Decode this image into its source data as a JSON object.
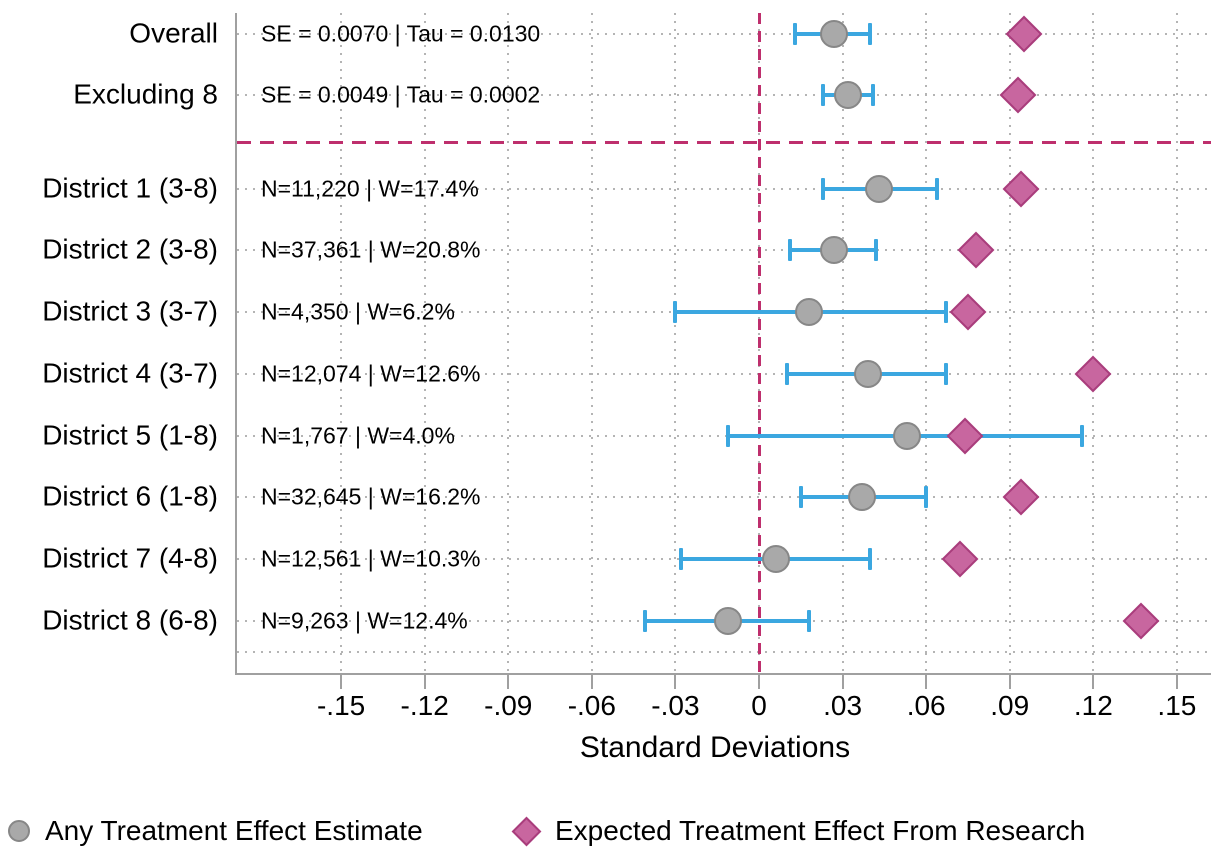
{
  "chart_data": {
    "type": "scatter",
    "subtype": "forest-plot",
    "xlabel": "Standard Deviations",
    "xlim": [
      -0.19,
      0.16
    ],
    "x_ticks": [
      -0.15,
      -0.12,
      -0.09,
      -0.06,
      -0.03,
      0,
      0.03,
      0.06,
      0.09,
      0.12,
      0.15
    ],
    "x_tick_labels": [
      "-.15",
      "-.12",
      "-.09",
      "-.06",
      "-.03",
      "0",
      ".03",
      ".06",
      ".09",
      ".12",
      ".15"
    ],
    "grid": true,
    "zero_reference_line": 0,
    "legend_position": "bottom",
    "legend": [
      {
        "label": "Any Treatment Effect Estimate",
        "marker": "circle"
      },
      {
        "label": "Expected Treatment Effect From Research",
        "marker": "diamond"
      }
    ],
    "rows": [
      {
        "label": "Overall",
        "annotation": "SE = 0.0070 | Tau = 0.0130",
        "estimate": 0.027,
        "ci_low": 0.013,
        "ci_high": 0.04,
        "expected": 0.095,
        "group": "summary"
      },
      {
        "label": "Excluding 8",
        "annotation": "SE = 0.0049 | Tau = 0.0002",
        "estimate": 0.032,
        "ci_low": 0.023,
        "ci_high": 0.041,
        "expected": 0.093,
        "group": "summary"
      },
      {
        "label": "District 1 (3-8)",
        "annotation": "N=11,220 | W=17.4%",
        "estimate": 0.043,
        "ci_low": 0.023,
        "ci_high": 0.064,
        "expected": 0.094,
        "group": "district"
      },
      {
        "label": "District 2 (3-8)",
        "annotation": "N=37,361 | W=20.8%",
        "estimate": 0.027,
        "ci_low": 0.011,
        "ci_high": 0.042,
        "expected": 0.078,
        "group": "district"
      },
      {
        "label": "District 3 (3-7)",
        "annotation": "N=4,350 | W=6.2%",
        "estimate": 0.018,
        "ci_low": -0.03,
        "ci_high": 0.067,
        "expected": 0.075,
        "group": "district"
      },
      {
        "label": "District 4 (3-7)",
        "annotation": "N=12,074 | W=12.6%",
        "estimate": 0.039,
        "ci_low": 0.01,
        "ci_high": 0.067,
        "expected": 0.12,
        "group": "district"
      },
      {
        "label": "District 5 (1-8)",
        "annotation": "N=1,767 | W=4.0%",
        "estimate": 0.053,
        "ci_low": -0.011,
        "ci_high": 0.116,
        "expected": 0.074,
        "group": "district"
      },
      {
        "label": "District 6 (1-8)",
        "annotation": "N=32,645 | W=16.2%",
        "estimate": 0.037,
        "ci_low": 0.015,
        "ci_high": 0.06,
        "expected": 0.094,
        "group": "district"
      },
      {
        "label": "District 7 (4-8)",
        "annotation": "N=12,561 | W=10.3%",
        "estimate": 0.006,
        "ci_low": -0.028,
        "ci_high": 0.04,
        "expected": 0.072,
        "group": "district"
      },
      {
        "label": "District 8 (6-8)",
        "annotation": "N=9,263 | W=12.4%",
        "estimate": -0.011,
        "ci_low": -0.041,
        "ci_high": 0.018,
        "expected": 0.137,
        "group": "district"
      }
    ]
  },
  "colors": {
    "ci_bar": "#3ba7e0",
    "estimate_fill": "#a9a9a9",
    "estimate_stroke": "#878787",
    "expected_fill": "#c8669f",
    "expected_stroke": "#a93d7c",
    "reference_dash": "#be2f6d",
    "gridline": "#b4b4b4",
    "axis": "#a0a0a0",
    "text": "#000000"
  }
}
